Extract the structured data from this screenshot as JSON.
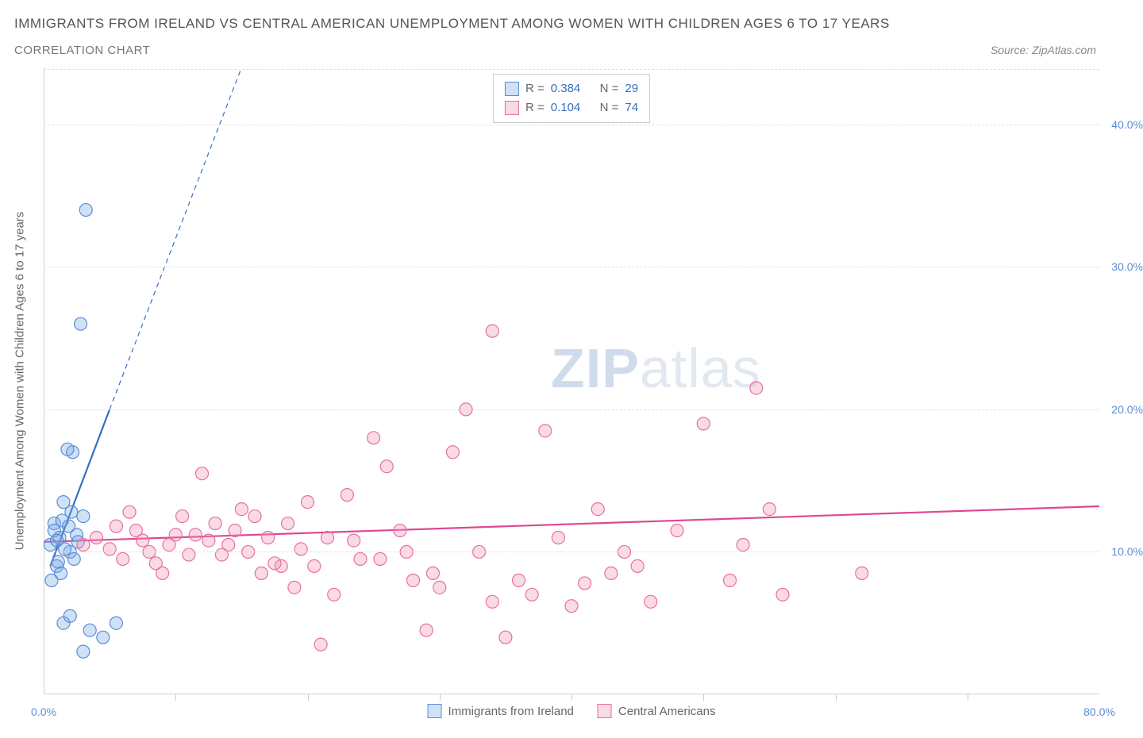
{
  "title": "IMMIGRANTS FROM IRELAND VS CENTRAL AMERICAN UNEMPLOYMENT AMONG WOMEN WITH CHILDREN AGES 6 TO 17 YEARS",
  "subtitle": "CORRELATION CHART",
  "source": "Source: ZipAtlas.com",
  "y_axis_label": "Unemployment Among Women with Children Ages 6 to 17 years",
  "watermark_a": "ZIP",
  "watermark_b": "atlas",
  "chart": {
    "type": "scatter",
    "xlim": [
      0,
      80
    ],
    "ylim": [
      0,
      44
    ],
    "x_ticks": [
      0,
      80
    ],
    "x_tick_labels": [
      "0.0%",
      "80.0%"
    ],
    "y_ticks": [
      10,
      20,
      30,
      40
    ],
    "y_tick_labels": [
      "10.0%",
      "20.0%",
      "30.0%",
      "40.0%"
    ],
    "background_color": "#ffffff",
    "grid_color": "#e0e0e0",
    "marker_radius": 8,
    "marker_stroke_width": 1.2,
    "series": [
      {
        "name": "Immigrants from Ireland",
        "fill": "rgba(120,170,230,0.35)",
        "stroke": "#5b8dd6",
        "trend": {
          "x1": 0.5,
          "y1": 9.0,
          "x2": 5.0,
          "y2": 20.0,
          "dash_after_x": 5.0,
          "dash_end_x": 15.0,
          "dash_end_y": 44.0,
          "color": "#3570c0",
          "width": 2.2
        },
        "R": "0.384",
        "N": "29",
        "points": [
          [
            1.0,
            9.0
          ],
          [
            0.5,
            10.5
          ],
          [
            1.2,
            11.0
          ],
          [
            0.8,
            12.0
          ],
          [
            2.0,
            10.0
          ],
          [
            2.5,
            11.2
          ],
          [
            3.0,
            12.5
          ],
          [
            1.5,
            13.5
          ],
          [
            2.2,
            17.0
          ],
          [
            1.8,
            17.2
          ],
          [
            0.6,
            8.0
          ],
          [
            1.3,
            8.5
          ],
          [
            3.2,
            34.0
          ],
          [
            2.8,
            26.0
          ],
          [
            1.5,
            5.0
          ],
          [
            2.0,
            5.5
          ],
          [
            3.5,
            4.5
          ],
          [
            3.0,
            3.0
          ],
          [
            4.5,
            4.0
          ],
          [
            5.5,
            5.0
          ],
          [
            0.8,
            11.5
          ],
          [
            1.6,
            10.2
          ],
          [
            2.3,
            9.5
          ],
          [
            1.0,
            10.8
          ],
          [
            1.4,
            12.2
          ],
          [
            2.6,
            10.7
          ],
          [
            1.1,
            9.3
          ],
          [
            1.9,
            11.8
          ],
          [
            2.1,
            12.8
          ]
        ]
      },
      {
        "name": "Central Americans",
        "fill": "rgba(240,150,180,0.35)",
        "stroke": "#e670a0",
        "trend": {
          "x1": 0,
          "y1": 10.7,
          "x2": 80,
          "y2": 13.2,
          "color": "#e04890",
          "width": 2.2
        },
        "R": "0.104",
        "N": "74",
        "points": [
          [
            3.0,
            10.5
          ],
          [
            4.0,
            11.0
          ],
          [
            5.0,
            10.2
          ],
          [
            6.0,
            9.5
          ],
          [
            7.0,
            11.5
          ],
          [
            8.0,
            10.0
          ],
          [
            9.0,
            8.5
          ],
          [
            10.0,
            11.2
          ],
          [
            11.0,
            9.8
          ],
          [
            12.0,
            15.5
          ],
          [
            13.0,
            12.0
          ],
          [
            14.0,
            10.5
          ],
          [
            15.0,
            13.0
          ],
          [
            16.0,
            12.5
          ],
          [
            17.0,
            11.0
          ],
          [
            18.0,
            9.0
          ],
          [
            19.0,
            7.5
          ],
          [
            20.0,
            13.5
          ],
          [
            21.0,
            3.5
          ],
          [
            22.0,
            7.0
          ],
          [
            23.0,
            14.0
          ],
          [
            24.0,
            9.5
          ],
          [
            25.0,
            18.0
          ],
          [
            26.0,
            16.0
          ],
          [
            27.0,
            11.5
          ],
          [
            28.0,
            8.0
          ],
          [
            29.0,
            4.5
          ],
          [
            30.0,
            7.5
          ],
          [
            31.0,
            17.0
          ],
          [
            32.0,
            20.0
          ],
          [
            33.0,
            10.0
          ],
          [
            34.0,
            6.5
          ],
          [
            35.0,
            4.0
          ],
          [
            36.0,
            8.0
          ],
          [
            37.0,
            7.0
          ],
          [
            38.0,
            18.5
          ],
          [
            39.0,
            11.0
          ],
          [
            40.0,
            6.2
          ],
          [
            41.0,
            7.8
          ],
          [
            42.0,
            13.0
          ],
          [
            34.0,
            25.5
          ],
          [
            43.0,
            8.5
          ],
          [
            44.0,
            10.0
          ],
          [
            45.0,
            9.0
          ],
          [
            46.0,
            6.5
          ],
          [
            48.0,
            11.5
          ],
          [
            50.0,
            19.0
          ],
          [
            52.0,
            8.0
          ],
          [
            53.0,
            10.5
          ],
          [
            54.0,
            21.5
          ],
          [
            55.0,
            13.0
          ],
          [
            56.0,
            7.0
          ],
          [
            12.5,
            10.8
          ],
          [
            14.5,
            11.5
          ],
          [
            16.5,
            8.5
          ],
          [
            18.5,
            12.0
          ],
          [
            20.5,
            9.0
          ],
          [
            62.0,
            8.5
          ],
          [
            6.5,
            12.8
          ],
          [
            8.5,
            9.2
          ],
          [
            10.5,
            12.5
          ],
          [
            5.5,
            11.8
          ],
          [
            7.5,
            10.8
          ],
          [
            9.5,
            10.5
          ],
          [
            11.5,
            11.2
          ],
          [
            13.5,
            9.8
          ],
          [
            15.5,
            10.0
          ],
          [
            17.5,
            9.2
          ],
          [
            19.5,
            10.2
          ],
          [
            21.5,
            11.0
          ],
          [
            23.5,
            10.8
          ],
          [
            25.5,
            9.5
          ],
          [
            27.5,
            10.0
          ],
          [
            29.5,
            8.5
          ]
        ]
      }
    ]
  },
  "stats_labels": {
    "R": "R =",
    "N": "N ="
  },
  "x_minor_ticks": [
    10,
    20,
    30,
    40,
    50,
    60,
    70
  ]
}
